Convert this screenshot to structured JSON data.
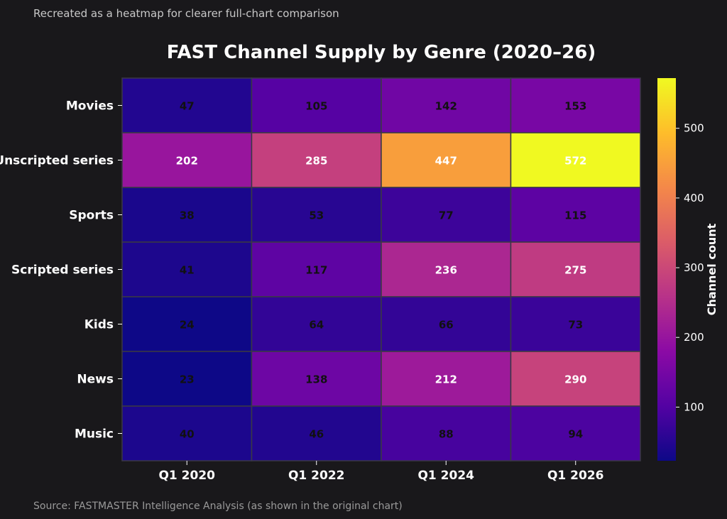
{
  "page": {
    "note": "Recreated as a heatmap for clearer full-chart comparison",
    "source": "Source: FASTMASTER Intelligence Analysis (as shown in the original chart)"
  },
  "colors": {
    "background": "#19181b",
    "cell_border": "#3a3845",
    "note_text": "#c8c8c8",
    "source_text": "#9a9a9a",
    "axis_text": "#ffffff",
    "label_dark": "#111111",
    "label_light": "#ffffff",
    "colorscale": [
      "#0d0887",
      "#5302a3",
      "#8b0aa5",
      "#b83289",
      "#db5c68",
      "#f48849",
      "#febd2a",
      "#f0f921"
    ]
  },
  "chart_data": {
    "type": "heatmap",
    "title": "FAST Channel Supply by Genre (2020–26)",
    "x": [
      "Q1 2020",
      "Q1 2022",
      "Q1 2024",
      "Q1 2026"
    ],
    "y": [
      "Movies",
      "Unscripted series",
      "Sports",
      "Scripted series",
      "Kids",
      "News",
      "Music"
    ],
    "values": [
      [
        47,
        105,
        142,
        153
      ],
      [
        202,
        285,
        447,
        572
      ],
      [
        38,
        53,
        77,
        115
      ],
      [
        41,
        117,
        236,
        275
      ],
      [
        24,
        64,
        66,
        73
      ],
      [
        23,
        138,
        212,
        290
      ],
      [
        40,
        46,
        88,
        94
      ]
    ],
    "zmin": 23,
    "zmax": 572,
    "colorbar": {
      "title": "Channel count",
      "ticks": [
        100,
        200,
        300,
        400,
        500
      ]
    },
    "light_label_threshold": 180
  }
}
